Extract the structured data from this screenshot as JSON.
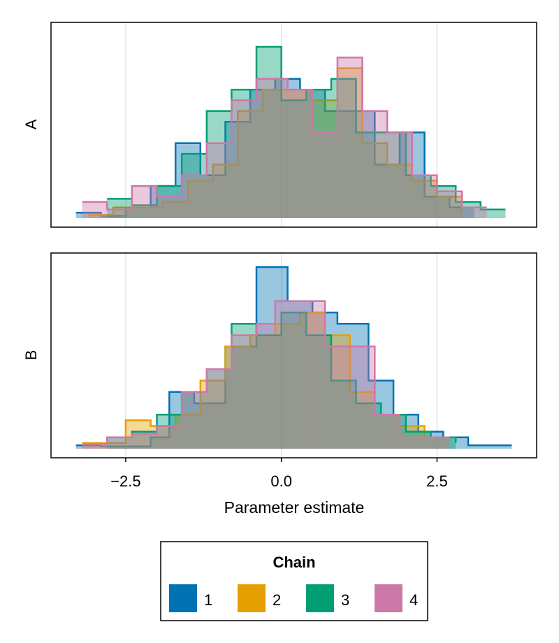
{
  "chart_data": {
    "type": "histogram",
    "xlabel": "Parameter estimate",
    "xticks": [
      "−2.5",
      "0.0",
      "2.5"
    ],
    "xtick_values": [
      -2.5,
      0.0,
      2.5
    ],
    "xlim": [
      -3.7,
      4.1
    ],
    "grid": true,
    "panels": [
      {
        "label": "A",
        "ymax": 17.5,
        "series": [
          {
            "chain": "1",
            "edges": [
              -3.3,
              -2.9,
              -2.5,
              -2.1,
              -1.7,
              -1.3,
              -0.9,
              -0.5,
              -0.1,
              0.3,
              0.7,
              1.1,
              1.5,
              1.9,
              2.3,
              2.7,
              3.1
            ],
            "counts": [
              0.5,
              0.2,
              1,
              3,
              7,
              4,
              9,
              12,
              13,
              12,
              10,
              10,
              5,
              8,
              2,
              1,
              1
            ]
          },
          {
            "chain": "2",
            "edges": [
              -3.1,
              -2.7,
              -2.3,
              -1.9,
              -1.5,
              -1.1,
              -0.7,
              -0.3,
              0.1,
              0.5,
              0.9,
              1.3,
              1.7,
              2.1,
              2.5,
              2.9
            ],
            "counts": [
              0.3,
              1,
              1,
              1.5,
              3.5,
              5,
              10,
              12,
              12,
              11,
              14,
              7,
              5,
              3.5,
              2,
              0.5
            ]
          },
          {
            "chain": "3",
            "edges": [
              -2.8,
              -2.4,
              -2.0,
              -1.6,
              -1.2,
              -0.8,
              -0.4,
              0,
              0.4,
              0.8,
              1.2,
              1.6,
              2.0,
              2.4,
              2.8,
              3.2,
              3.6
            ],
            "counts": [
              1.8,
              1.2,
              3,
              6,
              10,
              12,
              16,
              11,
              12,
              13,
              8,
              8,
              4,
              3,
              1.5,
              0.8,
              0.8
            ]
          },
          {
            "chain": "4",
            "edges": [
              -3.2,
              -2.8,
              -2.4,
              -2.0,
              -1.6,
              -1.2,
              -0.8,
              -0.4,
              0.1,
              0.5,
              0.9,
              1.3,
              1.7,
              2.1,
              2.5,
              2.9,
              3.3
            ],
            "counts": [
              1.5,
              0.8,
              3,
              2,
              4,
              7,
              11,
              13,
              12,
              8,
              15,
              10,
              8,
              4,
              2.5,
              1,
              1
            ]
          }
        ]
      },
      {
        "label": "B",
        "ymax": 16.5,
        "series": [
          {
            "chain": "1",
            "edges": [
              -3.3,
              -2.9,
              -2.5,
              -2.1,
              -1.8,
              -1.4,
              -0.9,
              -0.4,
              0.1,
              0.5,
              0.9,
              1.4,
              1.8,
              2.2,
              2.6,
              3.0,
              3.7
            ],
            "counts": [
              0.3,
              0.2,
              0.2,
              1,
              5,
              4,
              9,
              16,
              13,
              12,
              11,
              6,
              3,
              1.5,
              1,
              0.3
            ]
          },
          {
            "chain": "2",
            "edges": [
              -3.2,
              -2.5,
              -2.1,
              -1.7,
              -1.3,
              -0.9,
              -0.5,
              -0.1,
              0.3,
              0.7,
              1.1,
              1.5,
              1.9,
              2.3,
              2.7
            ],
            "counts": [
              0.5,
              2.5,
              2,
              3,
              6,
              9,
              10,
              11,
              12,
              10,
              5,
              3,
              2,
              1,
              1
            ]
          },
          {
            "chain": "3",
            "edges": [
              -2.8,
              -2.4,
              -2.0,
              -1.6,
              -1.2,
              -0.8,
              -0.4,
              0,
              0.4,
              0.8,
              1.2,
              1.6,
              2.0,
              2.4,
              2.8
            ],
            "counts": [
              1,
              1.5,
              3,
              5,
              7,
              11,
              10,
              12,
              10,
              6,
              4,
              3,
              1.5,
              1,
              0.5
            ]
          },
          {
            "chain": "4",
            "edges": [
              -3.2,
              -2.8,
              -2.4,
              -2.0,
              -1.6,
              -1.2,
              -0.8,
              -0.4,
              -0.1,
              0.3,
              0.7,
              1.1,
              1.5,
              1.9,
              2.3,
              2.7
            ],
            "counts": [
              0.4,
              1,
              1.3,
              2,
              5,
              7,
              10,
              11,
              13,
              13,
              9,
              9,
              3,
              1,
              1
            ]
          }
        ]
      }
    ],
    "legend": {
      "title": "Chain",
      "placement": "bottom",
      "entries": [
        {
          "label": "1",
          "color": "#0072b2"
        },
        {
          "label": "2",
          "color": "#e69f00"
        },
        {
          "label": "3",
          "color": "#009e73"
        },
        {
          "label": "4",
          "color": "#cc79a7"
        }
      ]
    },
    "fill_opacity": 0.4
  }
}
